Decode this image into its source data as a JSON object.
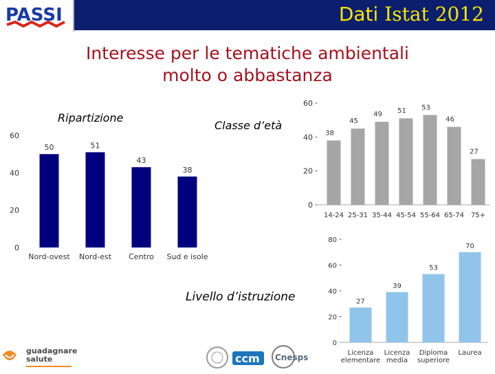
{
  "header": {
    "title_part1": "Dati",
    "title_part2": " Istat 2012",
    "logo_text": "PASSI"
  },
  "title": {
    "line1": "Interesse per le tematiche ambientali",
    "line2": "molto o abbastanza"
  },
  "colors": {
    "header_bg": "#0b1f6e",
    "header_text": "#ffe600",
    "title": "#a3121e",
    "navy": "#00007f",
    "gray": "#a6a6a6",
    "lightblue": "#91c4ea"
  },
  "footer": {
    "logo1": "guadagnare",
    "logo2": "salute",
    "logo3": "ccm",
    "logo4": "Cnesps"
  },
  "chart_data": [
    {
      "type": "bar",
      "title": "Ripartizione",
      "categories": [
        "Nord-ovest",
        "Nord-est",
        "Centro",
        "Sud e isole"
      ],
      "values": [
        50,
        51,
        43,
        38
      ],
      "ylim": [
        0,
        60
      ],
      "yticks": [
        0,
        20,
        40,
        60
      ],
      "color": "#00007f"
    },
    {
      "type": "bar",
      "title": "Classe d’età",
      "categories": [
        "14-24",
        "25-31",
        "35-44",
        "45-54",
        "55-64",
        "65-74",
        "75+"
      ],
      "values": [
        38,
        45,
        49,
        51,
        53,
        46,
        27
      ],
      "ylim": [
        0,
        60
      ],
      "yticks": [
        0,
        20,
        40,
        60
      ],
      "color": "#a6a6a6"
    },
    {
      "type": "bar",
      "title": "Livello d’istruzione",
      "categories": [
        [
          "Licenza",
          "elementare"
        ],
        [
          "Licenza",
          "media"
        ],
        [
          "Diploma",
          "superiore"
        ],
        [
          "Laurea"
        ]
      ],
      "values": [
        27,
        39,
        53,
        70
      ],
      "ylim": [
        0,
        80
      ],
      "yticks": [
        0,
        20,
        40,
        60,
        80
      ],
      "color": "#91c4ea"
    }
  ]
}
